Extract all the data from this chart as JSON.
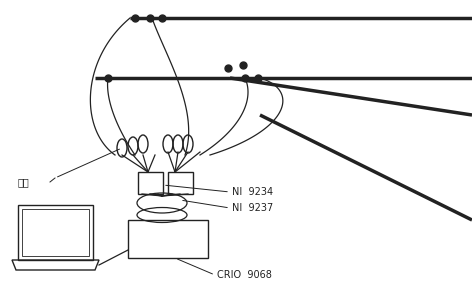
{
  "bg_color": "#ffffff",
  "line_color": "#222222",
  "text_color": "#222222",
  "labels": {
    "qiahe": "桥盒",
    "ni9234": "NI  9234",
    "ni9237": "NI  9237",
    "crio": "CRIO  9068"
  }
}
